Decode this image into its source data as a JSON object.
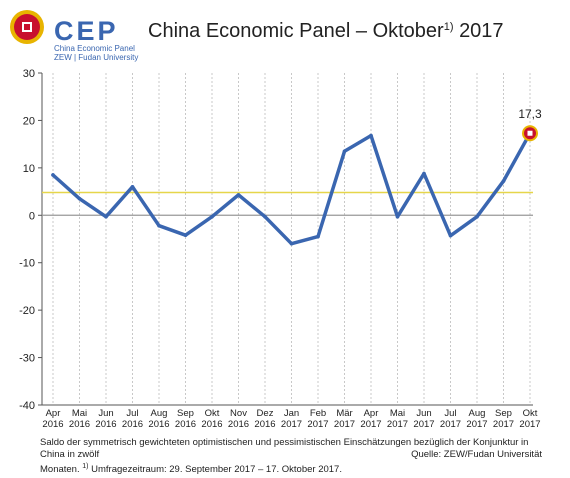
{
  "logo": {
    "name": "CEP",
    "subtitle_line1": "China Economic Panel",
    "subtitle_line2": "ZEW | Fudan University"
  },
  "title": {
    "main": "China Economic Panel – Oktober",
    "superscript": "1)",
    "year": "2017"
  },
  "footnote": {
    "line1": "Saldo der symmetrisch gewichteten optimistischen und pessimistischen Einschätzungen bezüglich der Konjunktur in China in zwölf",
    "line2_prefix": "Monaten.",
    "line2_sup": "1)",
    "line2_rest": "Umfragezeitraum: 29. September 2017 – 17. Oktober 2017."
  },
  "source": "Quelle: ZEW/Fudan Universität",
  "colors": {
    "line": "#3a66b0",
    "reference_line": "#e6d64a",
    "zero_line": "#999999",
    "grid": "#c8c8c8",
    "marker_outer": "#e8b400",
    "marker_inner": "#c8102e"
  },
  "chart_data": {
    "type": "line",
    "x": [
      [
        "Apr",
        "2016"
      ],
      [
        "Mai",
        "2016"
      ],
      [
        "Jun",
        "2016"
      ],
      [
        "Jul",
        "2016"
      ],
      [
        "Aug",
        "2016"
      ],
      [
        "Sep",
        "2016"
      ],
      [
        "Okt",
        "2016"
      ],
      [
        "Nov",
        "2016"
      ],
      [
        "Dez",
        "2016"
      ],
      [
        "Jan",
        "2017"
      ],
      [
        "Feb",
        "2017"
      ],
      [
        "Mär",
        "2017"
      ],
      [
        "Apr",
        "2017"
      ],
      [
        "Mai",
        "2017"
      ],
      [
        "Jun",
        "2017"
      ],
      [
        "Jul",
        "2017"
      ],
      [
        "Aug",
        "2017"
      ],
      [
        "Sep",
        "2017"
      ],
      [
        "Okt",
        "2017"
      ]
    ],
    "values": [
      8.5,
      3.5,
      -0.3,
      6.0,
      -2.2,
      -4.2,
      -0.3,
      4.3,
      -0.3,
      -6.0,
      -4.5,
      13.5,
      16.8,
      -0.3,
      8.8,
      -4.3,
      -0.3,
      7.2,
      17.3
    ],
    "reference_value": 4.8,
    "ylim": [
      -40,
      30
    ],
    "yticks": [
      30,
      20,
      10,
      0,
      -10,
      -20,
      -30,
      -40
    ],
    "last_value_label": "17,3",
    "grid": "vertical dashed",
    "legend": "none"
  }
}
